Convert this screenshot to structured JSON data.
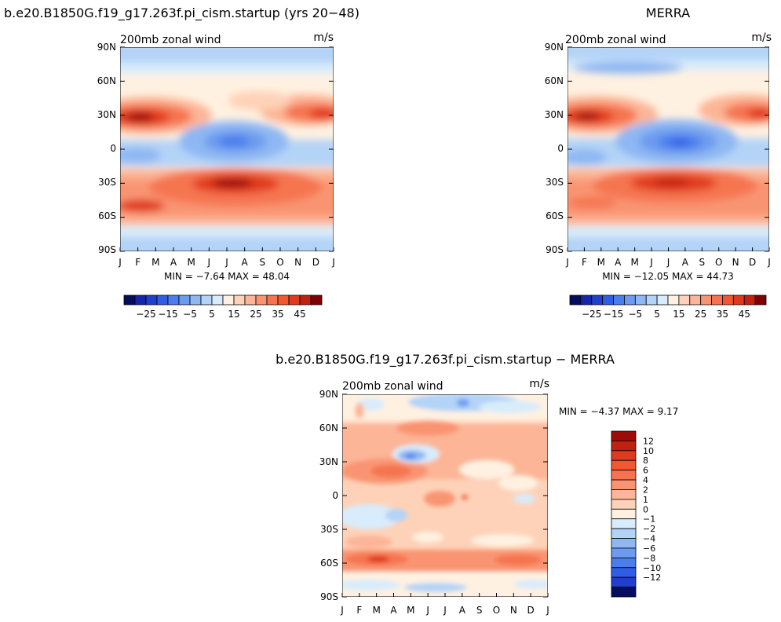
{
  "months": [
    "J",
    "F",
    "M",
    "A",
    "M",
    "J",
    "J",
    "A",
    "S",
    "O",
    "N",
    "D",
    "J"
  ],
  "lat_ticks": [
    "90N",
    "60N",
    "30N",
    "0",
    "30S",
    "60S",
    "90S"
  ],
  "colors": {
    "warm": [
      "#fff1e1",
      "#fed2b8",
      "#fcb596",
      "#f99472",
      "#f5744f",
      "#f2572f",
      "#e03a1e",
      "#c1220f",
      "#9f0b07",
      "#7d0205"
    ],
    "cool": [
      "#d8ecfb",
      "#b3d3f7",
      "#8eb7f3",
      "#6c9bef",
      "#4c7dec",
      "#2f5de4",
      "#1f3fcc",
      "#1427a9",
      "#0b1781",
      "#050d5e"
    ]
  },
  "panels": [
    {
      "title": "b.e20.B1850G.f19_g17.263f.pi_cism.startup (yrs 20−48)",
      "left_label": "200mb  zonal  wind",
      "right_label": "m/s",
      "stats": "MIN =   −7.64  MAX =   48.04"
    },
    {
      "title": "MERRA",
      "left_label": "200mb  zonal  wind",
      "right_label": "m/s",
      "stats": "MIN =  −12.05  MAX =   44.73"
    },
    {
      "title": "b.e20.B1850G.f19_g17.263f.pi_cism.startup  −  MERRA",
      "left_label": "200mb  zonal  wind",
      "right_label": "m/s",
      "stats": "MIN =    −4.37  MAX =     9.17"
    }
  ],
  "colorbars": [
    {
      "labels": [
        "−25",
        "−15",
        "−5",
        "5",
        "15",
        "25",
        "35",
        "45"
      ]
    },
    {
      "labels": [
        "−25",
        "−15",
        "−5",
        "5",
        "15",
        "25",
        "35",
        "45"
      ]
    },
    {
      "labels": [
        "12",
        "10",
        "8",
        "6",
        "4",
        "2",
        "1",
        "0",
        "−1",
        "−2",
        "−4",
        "−6",
        "−8",
        "−10",
        "−12"
      ]
    }
  ],
  "chart_data": [
    {
      "type": "heatmap",
      "title": "b.e20.B1850G.f19_g17.263f.pi_cism.startup (yrs 20−48)",
      "variable": "200mb zonal wind",
      "units": "m/s",
      "x": [
        "J",
        "F",
        "M",
        "A",
        "M",
        "J",
        "J",
        "A",
        "S",
        "O",
        "N",
        "D",
        "J"
      ],
      "y": [
        "90N",
        "60N",
        "30N",
        "0",
        "30S",
        "60S",
        "90S"
      ],
      "ylim": [
        "90S",
        "90N"
      ],
      "min": -7.64,
      "max": 48.04,
      "contour_levels": [
        -30,
        -25,
        -20,
        -15,
        -10,
        -5,
        0,
        5,
        10,
        15,
        20,
        25,
        30,
        35,
        40,
        45,
        50
      ]
    },
    {
      "type": "heatmap",
      "title": "MERRA",
      "variable": "200mb zonal wind",
      "units": "m/s",
      "x": [
        "J",
        "F",
        "M",
        "A",
        "M",
        "J",
        "J",
        "A",
        "S",
        "O",
        "N",
        "D",
        "J"
      ],
      "y": [
        "90N",
        "60N",
        "30N",
        "0",
        "30S",
        "60S",
        "90S"
      ],
      "ylim": [
        "90S",
        "90N"
      ],
      "min": -12.05,
      "max": 44.73,
      "contour_levels": [
        -30,
        -25,
        -20,
        -15,
        -10,
        -5,
        0,
        5,
        10,
        15,
        20,
        25,
        30,
        35,
        40,
        45,
        50
      ]
    },
    {
      "type": "heatmap",
      "title": "b.e20.B1850G.f19_g17.263f.pi_cism.startup  −  MERRA",
      "variable": "200mb zonal wind",
      "units": "m/s",
      "x": [
        "J",
        "F",
        "M",
        "A",
        "M",
        "J",
        "J",
        "A",
        "S",
        "O",
        "N",
        "D",
        "J"
      ],
      "y": [
        "90N",
        "60N",
        "30N",
        "0",
        "30S",
        "60S",
        "90S"
      ],
      "ylim": [
        "90S",
        "90N"
      ],
      "min": -4.37,
      "max": 9.17,
      "contour_levels": [
        -12,
        -10,
        -8,
        -6,
        -4,
        -2,
        -1,
        0,
        1,
        2,
        4,
        6,
        8,
        10,
        12
      ]
    }
  ]
}
